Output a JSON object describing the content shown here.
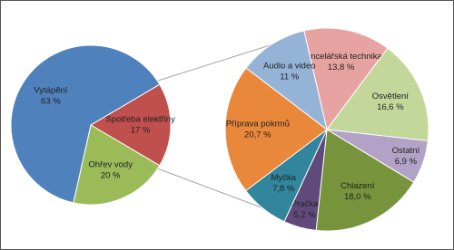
{
  "chart_data": [
    {
      "type": "pie",
      "categories": [
        "Spotřeba elektřiny",
        "Ohřev vody",
        "Vytápění"
      ],
      "values": [
        17,
        20,
        63
      ],
      "value_labels": [
        "17 %",
        "20 %",
        "63 %"
      ],
      "colors": [
        "#c0504d",
        "#9bbb59",
        "#4f81bd"
      ]
    },
    {
      "type": "pie",
      "categories": [
        "Kancelářská technika",
        "Osvětlení",
        "Ostatní",
        "Chlazení",
        "Pračka",
        "Myčka",
        "Příprava pokrmů",
        "Audio a video"
      ],
      "values": [
        13.8,
        16.6,
        6.9,
        18.0,
        5.2,
        7.8,
        20.7,
        11
      ],
      "value_labels": [
        "13,8 %",
        "16,6 %",
        "6,9 %",
        "18,0 %",
        "5,2 %",
        "7,8 %",
        "20,7 %",
        "11 %"
      ],
      "colors": [
        "#e6a3a1",
        "#c4d79b",
        "#b3a2c7",
        "#77933c",
        "#604a7b",
        "#31859c",
        "#e9873a",
        "#95b3d7"
      ]
    }
  ]
}
